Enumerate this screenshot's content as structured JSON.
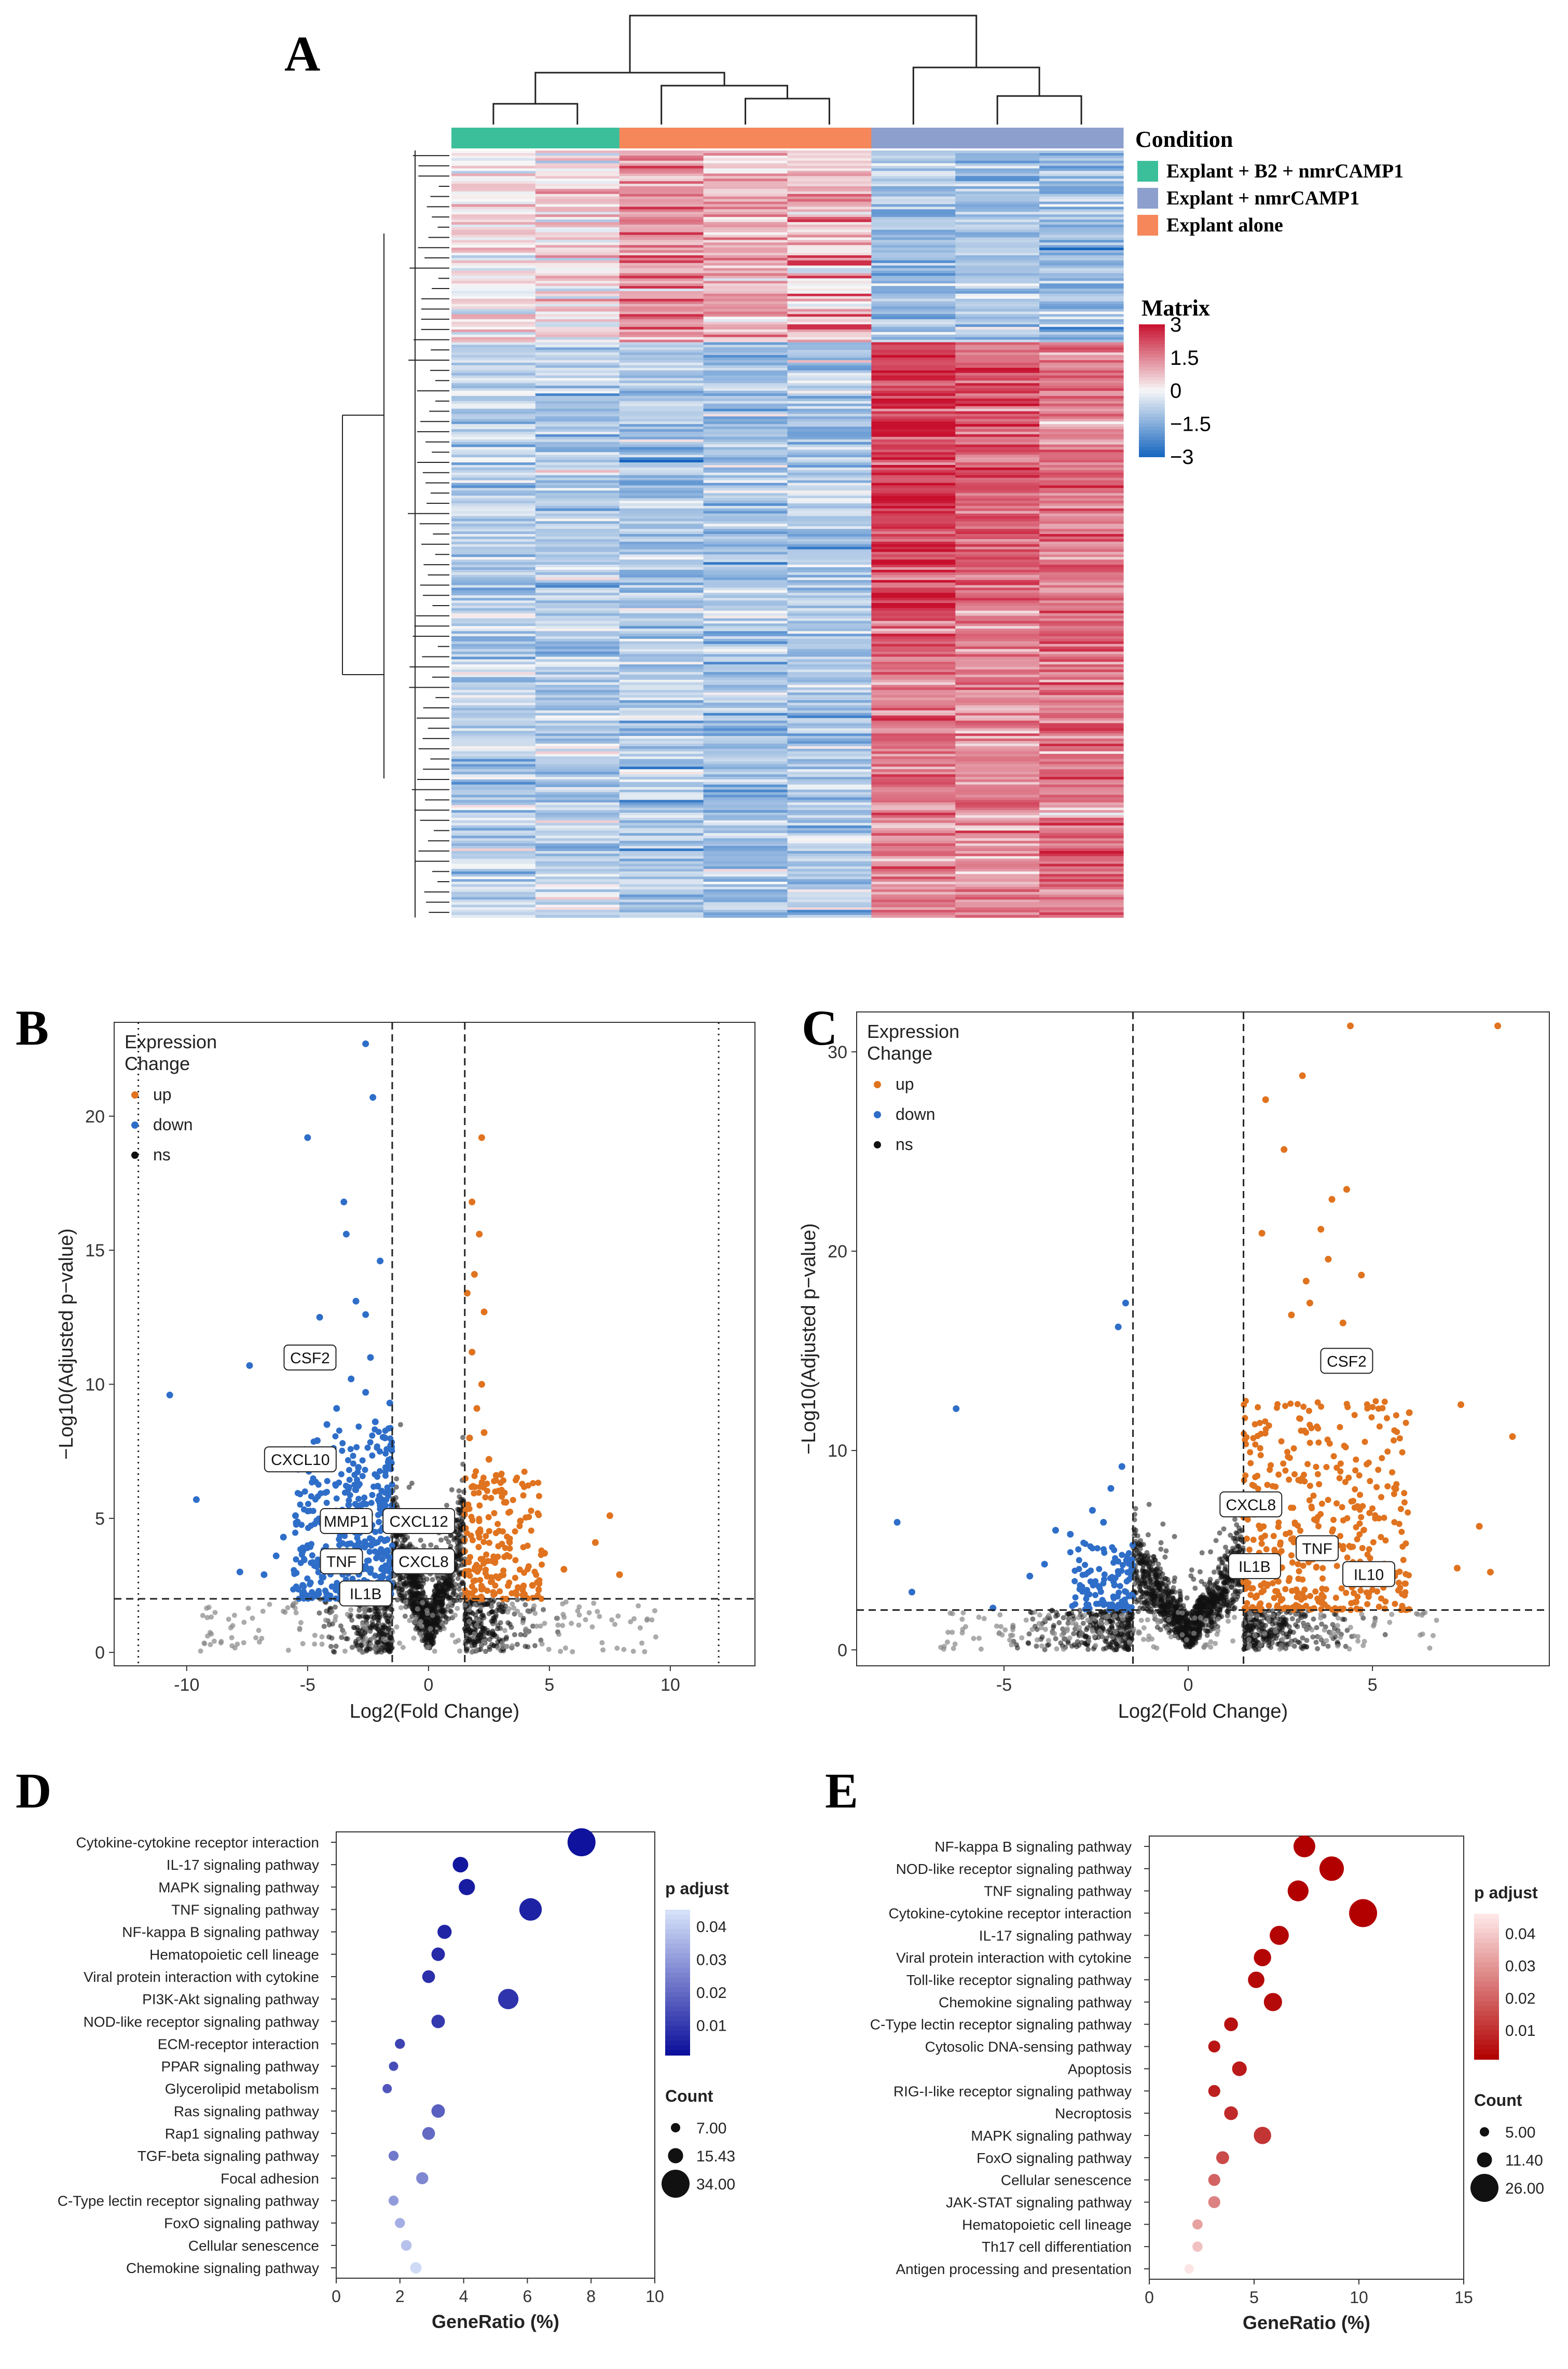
{
  "panel_labels": {
    "A": "A",
    "B": "B",
    "C": "C",
    "D": "D",
    "E": "E"
  },
  "chart_data": [
    {
      "id": "A",
      "type": "heatmap",
      "title": "",
      "legend_condition_title": "Condition",
      "conditions": [
        {
          "name": "Explant + B2 + nmrCAMP1",
          "color": "#3bbf9a"
        },
        {
          "name": "Explant + nmrCAMP1",
          "color": "#8d9fcd"
        },
        {
          "name": "Explant alone",
          "color": "#f6875a"
        }
      ],
      "column_order": [
        "Explant + B2 + nmrCAMP1",
        "Explant + B2 + nmrCAMP1",
        "Explant alone",
        "Explant alone",
        "Explant alone",
        "Explant + nmrCAMP1",
        "Explant + nmrCAMP1",
        "Explant + nmrCAMP1"
      ],
      "legend_matrix_title": "Matrix",
      "scale_ticks": [
        "3",
        "1.5",
        "0",
        "−1.5",
        "−3"
      ],
      "scale_range": [
        -3,
        3
      ],
      "colors": {
        "high": "#c8102e",
        "mid": "#f7f7f7",
        "low": "#1565c0"
      }
    },
    {
      "id": "B",
      "type": "scatter",
      "xlabel": "Log2(Fold Change)",
      "ylabel": "−Log10(Adjusted p−value)",
      "xlim": [
        -13,
        13.5
      ],
      "ylim": [
        -0.5,
        23.5
      ],
      "xticks": [
        -10,
        -5,
        0,
        5,
        10
      ],
      "yticks": [
        0,
        5,
        10,
        15,
        20
      ],
      "fc_threshold": [
        -1.5,
        1.5
      ],
      "padj_threshold": 2,
      "outer_lines": [
        -12,
        12
      ],
      "legend_title": [
        "Expression",
        "Change"
      ],
      "legend": [
        {
          "name": "up",
          "color": "#e0731f"
        },
        {
          "name": "down",
          "color": "#2f6ec8"
        },
        {
          "name": "ns",
          "color": "#111111"
        }
      ],
      "labels": [
        {
          "text": "CSF2",
          "x": -4.9,
          "y": 11.0
        },
        {
          "text": "CXCL10",
          "x": -5.3,
          "y": 7.2
        },
        {
          "text": "MMP1",
          "x": -3.4,
          "y": 4.9
        },
        {
          "text": "CXCL12",
          "x": -0.4,
          "y": 4.9
        },
        {
          "text": "TNF",
          "x": -3.6,
          "y": 3.4
        },
        {
          "text": "CXCL8",
          "x": -0.2,
          "y": 3.4
        },
        {
          "text": "IL1B",
          "x": -2.6,
          "y": 2.2
        }
      ],
      "down_points": [
        [
          -10.7,
          9.6
        ],
        [
          -9.6,
          5.7
        ],
        [
          -7.4,
          10.7
        ],
        [
          -5.0,
          19.2
        ],
        [
          -3.5,
          16.8
        ],
        [
          -3.4,
          15.6
        ],
        [
          -2.6,
          22.7
        ],
        [
          -2.3,
          20.7
        ],
        [
          -2.0,
          14.6
        ],
        [
          -4.5,
          12.5
        ],
        [
          -4.0,
          11.3
        ],
        [
          -3.0,
          13.1
        ],
        [
          -2.6,
          12.6
        ],
        [
          -6.0,
          4.3
        ],
        [
          -5.5,
          5.1
        ],
        [
          -6.8,
          2.9
        ],
        [
          -7.8,
          3.0
        ],
        [
          -4.6,
          7.9
        ],
        [
          -4.2,
          8.5
        ],
        [
          -3.8,
          9.1
        ],
        [
          -3.2,
          10.2
        ],
        [
          -2.6,
          9.7
        ],
        [
          -2.2,
          8.6
        ],
        [
          -1.8,
          8.0
        ],
        [
          -2.9,
          6.9
        ],
        [
          -2.1,
          6.2
        ],
        [
          -3.3,
          5.5
        ],
        [
          -1.9,
          5.2
        ],
        [
          -4.0,
          3.4
        ],
        [
          -2.5,
          3.1
        ],
        [
          -1.7,
          3.8
        ],
        [
          -2.1,
          2.6
        ],
        [
          -3.0,
          2.4
        ],
        [
          -5.2,
          2.5
        ],
        [
          -6.3,
          3.6
        ],
        [
          -1.6,
          9.3
        ],
        [
          -2.4,
          11.0
        ]
      ],
      "down_cluster": {
        "count": 420,
        "x": [
          -5.6,
          -1.5
        ],
        "y": [
          2.0,
          8.5
        ]
      },
      "up_points": [
        [
          2.2,
          19.2
        ],
        [
          1.8,
          16.8
        ],
        [
          2.1,
          15.6
        ],
        [
          1.9,
          14.1
        ],
        [
          2.3,
          12.7
        ],
        [
          1.8,
          11.2
        ],
        [
          2.2,
          10.0
        ],
        [
          2.0,
          9.1
        ],
        [
          2.3,
          8.2
        ],
        [
          1.7,
          8.0
        ],
        [
          7.5,
          5.1
        ],
        [
          6.9,
          4.1
        ],
        [
          7.9,
          2.9
        ],
        [
          5.6,
          3.1
        ],
        [
          4.8,
          3.7
        ],
        [
          4.3,
          2.5
        ],
        [
          3.8,
          4.9
        ],
        [
          3.2,
          5.6
        ],
        [
          2.8,
          6.6
        ],
        [
          2.5,
          7.2
        ],
        [
          1.6,
          13.4
        ]
      ],
      "up_cluster": {
        "count": 200,
        "x": [
          1.5,
          4.7
        ],
        "y": [
          2.0,
          6.8
        ]
      },
      "ns_cloud": {
        "count": 1400
      }
    },
    {
      "id": "C",
      "type": "scatter",
      "xlabel": "Log2(Fold Change)",
      "ylabel": "−Log10(Adjusted p−value)",
      "xlim": [
        -9,
        9.8
      ],
      "ylim": [
        -0.8,
        32
      ],
      "xticks": [
        -5,
        0,
        5
      ],
      "yticks": [
        0,
        10,
        20,
        30
      ],
      "fc_threshold": [
        -1.5,
        1.5
      ],
      "padj_threshold": 2,
      "outer_lines": [],
      "legend_title": [
        "Expression",
        "Change"
      ],
      "legend": [
        {
          "name": "up",
          "color": "#e0731f"
        },
        {
          "name": "down",
          "color": "#2f6ec8"
        },
        {
          "name": "ns",
          "color": "#111111"
        }
      ],
      "labels": [
        {
          "text": "CSF2",
          "x": 4.3,
          "y": 14.5
        },
        {
          "text": "CXCL8",
          "x": 1.7,
          "y": 7.3
        },
        {
          "text": "TNF",
          "x": 3.5,
          "y": 5.1
        },
        {
          "text": "IL1B",
          "x": 1.8,
          "y": 4.2
        },
        {
          "text": "IL10",
          "x": 4.9,
          "y": 3.8
        }
      ],
      "down_points": [
        [
          -7.9,
          6.4
        ],
        [
          -7.5,
          2.9
        ],
        [
          -6.3,
          12.1
        ],
        [
          -5.3,
          2.1
        ],
        [
          -4.3,
          3.7
        ],
        [
          -3.9,
          4.3
        ],
        [
          -3.2,
          5.8
        ],
        [
          -2.6,
          7.0
        ],
        [
          -2.3,
          6.4
        ],
        [
          -1.9,
          16.2
        ],
        [
          -1.7,
          17.4
        ],
        [
          -1.8,
          9.2
        ],
        [
          -2.1,
          8.1
        ],
        [
          -3.6,
          6.0
        ]
      ],
      "down_cluster": {
        "count": 110,
        "x": [
          -3.2,
          -1.5
        ],
        "y": [
          2.0,
          5.5
        ]
      },
      "up_points": [
        [
          4.4,
          31.3
        ],
        [
          8.4,
          31.3
        ],
        [
          2.1,
          27.6
        ],
        [
          3.1,
          28.8
        ],
        [
          2.6,
          25.1
        ],
        [
          3.9,
          22.6
        ],
        [
          4.3,
          23.1
        ],
        [
          3.6,
          21.1
        ],
        [
          2.0,
          20.9
        ],
        [
          3.8,
          19.6
        ],
        [
          4.7,
          18.8
        ],
        [
          3.2,
          18.5
        ],
        [
          3.3,
          17.4
        ],
        [
          2.8,
          16.8
        ],
        [
          4.2,
          16.4
        ],
        [
          7.4,
          12.3
        ],
        [
          8.8,
          10.7
        ],
        [
          6.0,
          11.9
        ],
        [
          7.9,
          6.2
        ],
        [
          7.3,
          4.1
        ],
        [
          8.2,
          3.9
        ]
      ],
      "up_cluster": {
        "count": 420,
        "x": [
          1.5,
          6.0
        ],
        "y": [
          2.0,
          12.5
        ]
      },
      "ns_cloud": {
        "count": 1600
      }
    },
    {
      "id": "D",
      "type": "dot",
      "xlabel": "GeneRatio (%)",
      "ylabel": "",
      "xlim": [
        0,
        10
      ],
      "xticks": [
        0,
        2,
        4,
        6,
        8,
        10
      ],
      "legend_color_title": "p adjust",
      "color_ticks": [
        "0.04",
        "0.03",
        "0.02",
        "0.01"
      ],
      "color_range": [
        0.001,
        0.045
      ],
      "colors": {
        "low": "#0a0d9a",
        "high": "#d8e4fb"
      },
      "legend_size_title": "Count",
      "size_ticks": [
        "7.00",
        "15.43",
        "34.00"
      ],
      "size_range": [
        7,
        34
      ],
      "pathways": [
        "Cytokine-cytokine receptor interaction",
        "IL-17 signaling pathway",
        "MAPK signaling pathway",
        "TNF signaling pathway",
        "NF-kappa B signaling pathway",
        "Hematopoietic cell lineage",
        "Viral protein interaction with cytokine",
        "PI3K-Akt signaling pathway",
        "NOD-like receptor signaling pathway",
        "ECM-receptor interaction",
        "PPAR signaling pathway",
        "Glycerolipid metabolism",
        "Ras signaling pathway",
        "Rap1 signaling pathway",
        "TGF-beta signaling pathway",
        "Focal adhesion",
        "C-Type lectin receptor signaling pathway",
        "FoxO signaling pathway",
        "Cellular senescence",
        "Chemokine signaling pathway"
      ],
      "gene_ratio": [
        7.7,
        3.9,
        4.1,
        6.1,
        3.4,
        3.2,
        2.9,
        5.4,
        3.2,
        2.0,
        1.8,
        1.6,
        3.2,
        2.9,
        1.8,
        2.7,
        1.8,
        2.0,
        2.2,
        2.5
      ],
      "count": [
        34,
        16,
        17,
        26,
        14,
        13,
        12,
        23,
        13,
        8,
        7,
        7,
        13,
        12,
        8,
        11,
        8,
        8,
        9,
        10
      ],
      "p_adjust": [
        0.002,
        0.003,
        0.004,
        0.005,
        0.006,
        0.007,
        0.008,
        0.009,
        0.01,
        0.012,
        0.014,
        0.016,
        0.018,
        0.02,
        0.023,
        0.026,
        0.03,
        0.034,
        0.038,
        0.043
      ]
    },
    {
      "id": "E",
      "type": "dot",
      "xlabel": "GeneRatio (%)",
      "ylabel": "",
      "xlim": [
        0,
        15
      ],
      "xticks": [
        0,
        5,
        10,
        15
      ],
      "legend_color_title": "p adjust",
      "color_ticks": [
        "0.04",
        "0.03",
        "0.02",
        "0.01"
      ],
      "color_range": [
        0.001,
        0.046
      ],
      "colors": {
        "low": "#b20000",
        "high": "#ffeaea"
      },
      "legend_size_title": "Count",
      "size_ticks": [
        "5.00",
        "11.40",
        "26.00"
      ],
      "size_range": [
        5,
        26
      ],
      "pathways": [
        "NF-kappa B signaling pathway",
        "NOD-like receptor signaling pathway",
        "TNF signaling pathway",
        "Cytokine-cytokine receptor interaction",
        "IL-17 signaling pathway",
        "Viral protein interaction with cytokine",
        "Toll-like receptor signaling pathway",
        "Chemokine signaling pathway",
        "C-Type lectin receptor signaling pathway",
        "Cytosolic DNA-sensing pathway",
        "Apoptosis",
        "RIG-I-like receptor signaling pathway",
        "Necroptosis",
        "MAPK signaling pathway",
        "FoxO signaling pathway",
        "Cellular senescence",
        "JAK-STAT signaling pathway",
        "Hematopoietic cell lineage",
        "Th17 cell differentiation",
        "Antigen processing and presentation"
      ],
      "gene_ratio": [
        7.4,
        8.7,
        7.1,
        10.2,
        6.2,
        5.4,
        5.1,
        5.9,
        3.9,
        3.1,
        4.3,
        3.1,
        3.9,
        5.4,
        3.5,
        3.1,
        3.1,
        2.3,
        2.3,
        1.9
      ],
      "count": [
        19,
        22,
        18,
        26,
        16,
        14,
        13,
        15,
        10,
        8,
        11,
        8,
        10,
        14,
        9,
        8,
        8,
        6,
        6,
        5
      ],
      "p_adjust": [
        0.001,
        0.001,
        0.001,
        0.001,
        0.002,
        0.002,
        0.003,
        0.003,
        0.004,
        0.005,
        0.006,
        0.007,
        0.009,
        0.011,
        0.015,
        0.02,
        0.026,
        0.032,
        0.038,
        0.045
      ]
    }
  ]
}
